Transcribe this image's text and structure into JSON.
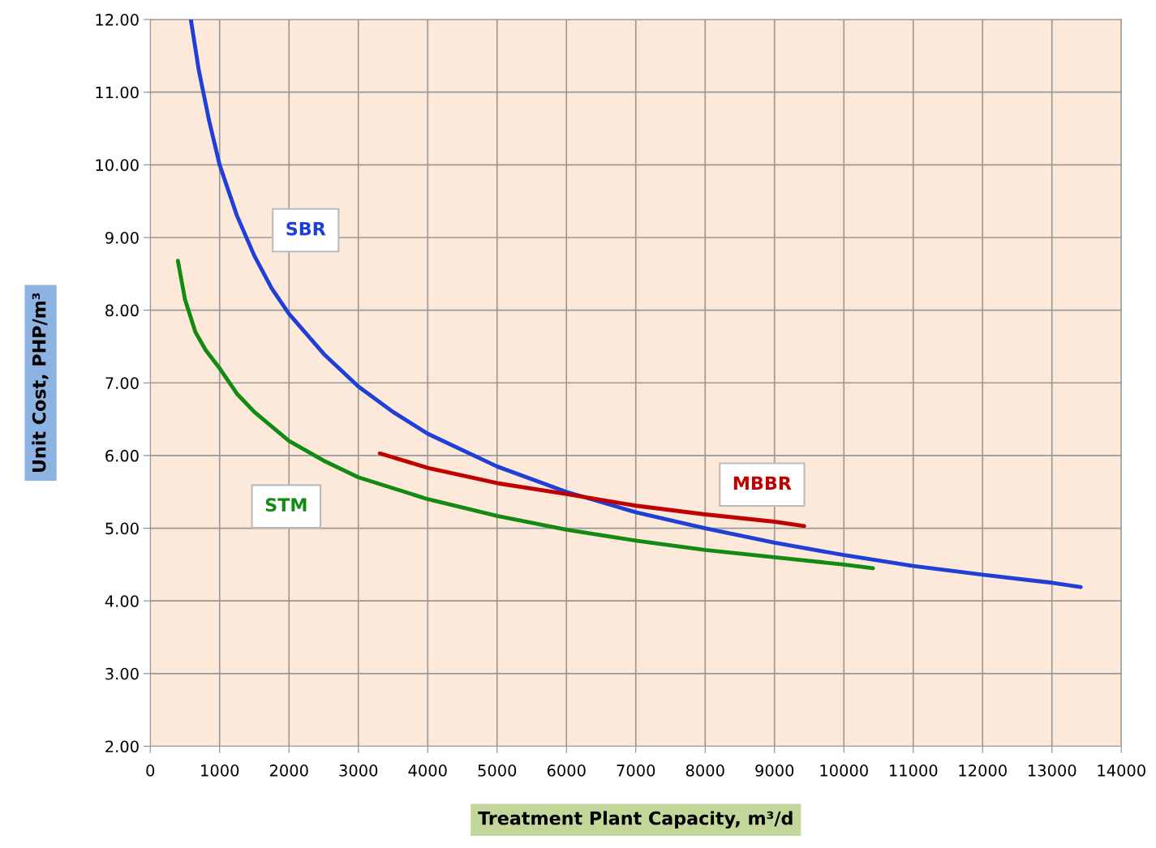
{
  "chart_data": {
    "type": "line",
    "xlabel": "Treatment Plant Capacity, m³/d",
    "ylabel": "Unit Cost, PHP/m³",
    "xlim": [
      0,
      14000
    ],
    "xticks": [
      0,
      1000,
      2000,
      3000,
      4000,
      5000,
      6000,
      7000,
      8000,
      9000,
      10000,
      11000,
      12000,
      13000,
      14000
    ],
    "ylim": [
      2,
      12
    ],
    "yticks": [
      {
        "value": 2,
        "label": "2.00"
      },
      {
        "value": 3,
        "label": "3.00"
      },
      {
        "value": 4,
        "label": "4.00"
      },
      {
        "value": 5,
        "label": "5.00"
      },
      {
        "value": 6,
        "label": "6.00"
      },
      {
        "value": 7,
        "label": "7.00"
      },
      {
        "value": 8,
        "label": "8.00"
      },
      {
        "value": 9,
        "label": "9.00"
      },
      {
        "value": 10,
        "label": "10.00"
      },
      {
        "value": 11,
        "label": "11.00"
      },
      {
        "value": 12,
        "label": "12.00"
      }
    ],
    "grid": true,
    "legend": false,
    "marker": "none",
    "line_style": "solid",
    "series": [
      {
        "name": "SBR",
        "color": "#1f3fd6",
        "x": [
          585,
          700,
          850,
          1000,
          1250,
          1500,
          1750,
          2000,
          2500,
          3000,
          3500,
          4000,
          5000,
          6000,
          7000,
          8000,
          9000,
          10000,
          11000,
          12000,
          13000,
          13415
        ],
        "values": [
          12.0,
          11.3,
          10.6,
          10.0,
          9.3,
          8.75,
          8.3,
          7.95,
          7.4,
          6.95,
          6.6,
          6.3,
          5.85,
          5.5,
          5.22,
          5.0,
          4.8,
          4.63,
          4.48,
          4.36,
          4.25,
          4.19
        ]
      },
      {
        "name": "STM",
        "color": "#138a13",
        "x": [
          398,
          500,
          650,
          800,
          1000,
          1250,
          1500,
          2000,
          2500,
          3000,
          4000,
          5000,
          6000,
          7000,
          8000,
          9000,
          10000,
          10420
        ],
        "values": [
          8.68,
          8.15,
          7.7,
          7.45,
          7.2,
          6.85,
          6.6,
          6.2,
          5.93,
          5.7,
          5.4,
          5.17,
          4.98,
          4.83,
          4.7,
          4.6,
          4.5,
          4.45
        ]
      },
      {
        "name": "MBBR",
        "color": "#c00000",
        "x": [
          3310,
          4000,
          5000,
          6000,
          7000,
          8000,
          9000,
          9427
        ],
        "values": [
          6.03,
          5.83,
          5.62,
          5.47,
          5.31,
          5.19,
          5.09,
          5.03
        ]
      }
    ]
  }
}
